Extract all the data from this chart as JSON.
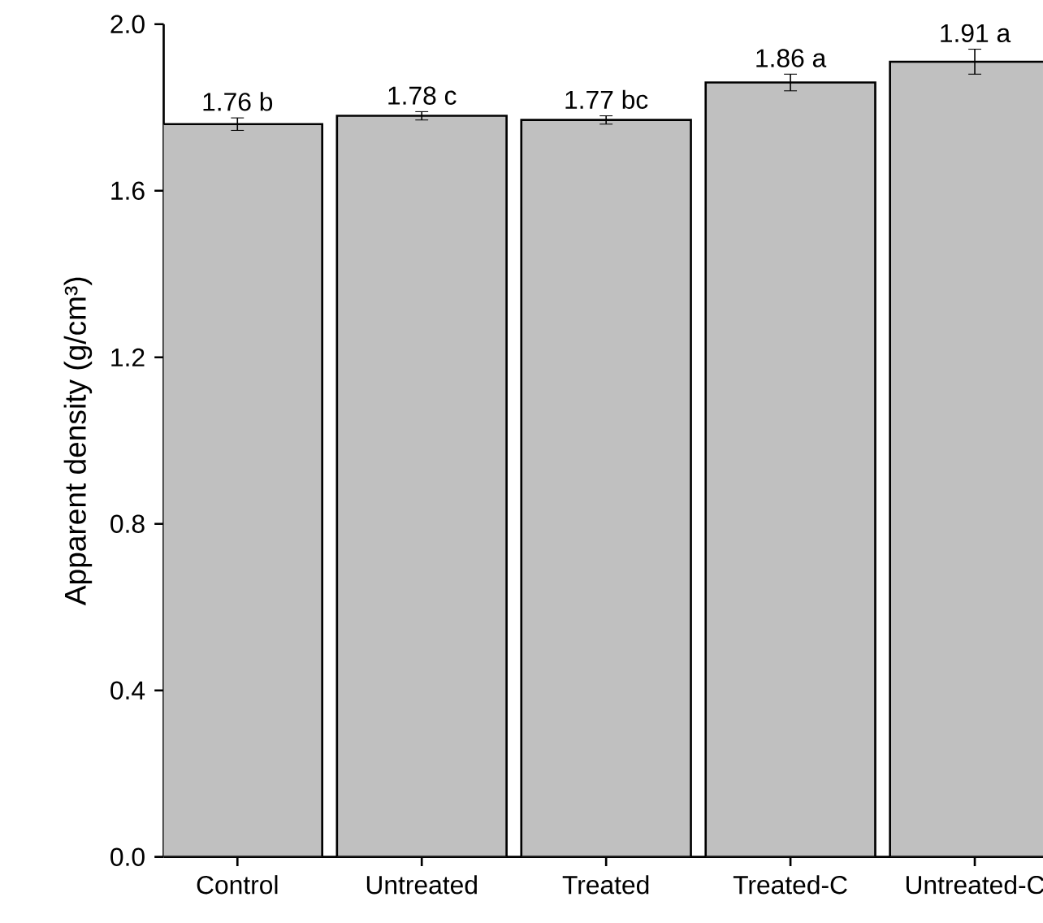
{
  "chart_data": {
    "type": "bar",
    "ylabel": "Apparent density (g/cm³)",
    "categories": [
      "Control",
      "Untreated",
      "Treated",
      "Treated-C",
      "Untreated-C"
    ],
    "values": [
      1.76,
      1.78,
      1.77,
      1.86,
      1.91
    ],
    "errors": [
      0.015,
      0.01,
      0.01,
      0.02,
      0.03
    ],
    "value_labels": [
      "1.76 b",
      "1.78 c",
      "1.77 bc",
      "1.86 a",
      "1.91 a"
    ],
    "color": "#c0c0c0",
    "ylim": [
      0,
      2.0
    ],
    "yticks": [
      {
        "value": 0,
        "label": "0.0"
      },
      {
        "value": 0.4,
        "label": "0.4"
      },
      {
        "value": 0.8,
        "label": "0.8"
      },
      {
        "value": 1.2,
        "label": "1.2"
      },
      {
        "value": 1.6,
        "label": "1.6"
      },
      {
        "value": 2.0,
        "label": "2.0"
      }
    ]
  }
}
